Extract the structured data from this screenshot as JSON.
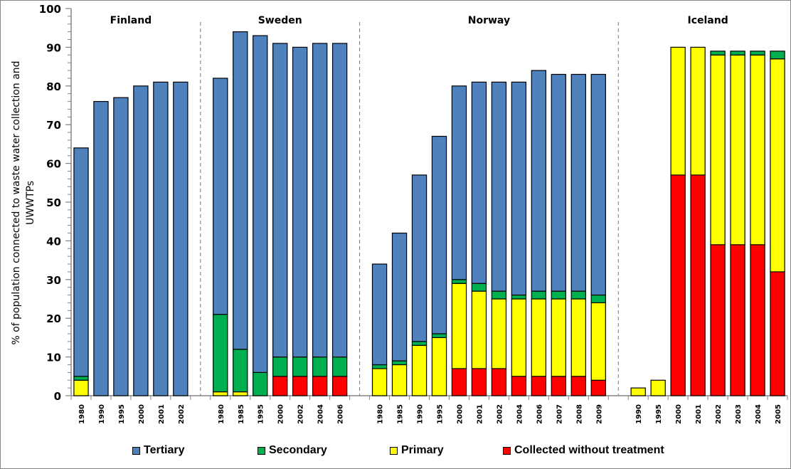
{
  "chart_data": {
    "type": "bar",
    "stacked": true,
    "title": "",
    "xlabel": "",
    "ylabel_lines": [
      "% of population connected to waste water collection and",
      "UWWTPs"
    ],
    "ylabel": "% of population connected to waste water collection and UWWTPs",
    "ylim": [
      0,
      100
    ],
    "yticks": [
      0,
      10,
      20,
      30,
      40,
      50,
      60,
      70,
      80,
      90,
      100
    ],
    "y_minor_step": 2,
    "grid": false,
    "legend_position": "bottom",
    "series_order_bottom_to_top": [
      "collected",
      "primary",
      "secondary",
      "tertiary"
    ],
    "series": [
      {
        "key": "tertiary",
        "name": "Tertiary",
        "color": "#4F81BD"
      },
      {
        "key": "secondary",
        "name": "Secondary",
        "color": "#00B050"
      },
      {
        "key": "primary",
        "name": "Primary",
        "color": "#FFFF00"
      },
      {
        "key": "collected",
        "name": "Collected without treatment",
        "color": "#FF0000"
      }
    ],
    "groups": [
      {
        "name": "Finland",
        "bars": [
          {
            "year": "1980",
            "collected": 0,
            "primary": 4,
            "secondary": 1,
            "tertiary": 59
          },
          {
            "year": "1990",
            "collected": 0,
            "primary": 0,
            "secondary": 0,
            "tertiary": 76
          },
          {
            "year": "1995",
            "collected": 0,
            "primary": 0,
            "secondary": 0,
            "tertiary": 77
          },
          {
            "year": "2000",
            "collected": 0,
            "primary": 0,
            "secondary": 0,
            "tertiary": 80
          },
          {
            "year": "2001",
            "collected": 0,
            "primary": 0,
            "secondary": 0,
            "tertiary": 81
          },
          {
            "year": "2002",
            "collected": 0,
            "primary": 0,
            "secondary": 0,
            "tertiary": 81
          }
        ]
      },
      {
        "name": "Sweden",
        "bars": [
          {
            "year": "1980",
            "collected": 0,
            "primary": 1,
            "secondary": 20,
            "tertiary": 61
          },
          {
            "year": "1985",
            "collected": 0,
            "primary": 1,
            "secondary": 11,
            "tertiary": 82
          },
          {
            "year": "1995",
            "collected": 0,
            "primary": 0,
            "secondary": 6,
            "tertiary": 87
          },
          {
            "year": "2000",
            "collected": 5,
            "primary": 0,
            "secondary": 5,
            "tertiary": 81
          },
          {
            "year": "2002",
            "collected": 5,
            "primary": 0,
            "secondary": 5,
            "tertiary": 80
          },
          {
            "year": "2004",
            "collected": 5,
            "primary": 0,
            "secondary": 5,
            "tertiary": 81
          },
          {
            "year": "2006",
            "collected": 5,
            "primary": 0,
            "secondary": 5,
            "tertiary": 81
          }
        ]
      },
      {
        "name": "Norway",
        "bars": [
          {
            "year": "1980",
            "collected": 0,
            "primary": 7,
            "secondary": 1,
            "tertiary": 26
          },
          {
            "year": "1985",
            "collected": 0,
            "primary": 8,
            "secondary": 1,
            "tertiary": 33
          },
          {
            "year": "1990",
            "collected": 0,
            "primary": 13,
            "secondary": 1,
            "tertiary": 43
          },
          {
            "year": "1995",
            "collected": 0,
            "primary": 15,
            "secondary": 1,
            "tertiary": 51
          },
          {
            "year": "2000",
            "collected": 7,
            "primary": 22,
            "secondary": 1,
            "tertiary": 50
          },
          {
            "year": "2001",
            "collected": 7,
            "primary": 20,
            "secondary": 2,
            "tertiary": 52
          },
          {
            "year": "2002",
            "collected": 7,
            "primary": 18,
            "secondary": 2,
            "tertiary": 54
          },
          {
            "year": "2004",
            "collected": 5,
            "primary": 20,
            "secondary": 1,
            "tertiary": 55
          },
          {
            "year": "2006",
            "collected": 5,
            "primary": 20,
            "secondary": 2,
            "tertiary": 57
          },
          {
            "year": "2007",
            "collected": 5,
            "primary": 20,
            "secondary": 2,
            "tertiary": 56
          },
          {
            "year": "2008",
            "collected": 5,
            "primary": 20,
            "secondary": 2,
            "tertiary": 56
          },
          {
            "year": "2009",
            "collected": 4,
            "primary": 20,
            "secondary": 2,
            "tertiary": 57
          }
        ]
      },
      {
        "name": "Iceland",
        "bars": [
          {
            "year": "1990",
            "collected": 0,
            "primary": 2,
            "secondary": 0,
            "tertiary": 0
          },
          {
            "year": "1995",
            "collected": 0,
            "primary": 4,
            "secondary": 0,
            "tertiary": 0
          },
          {
            "year": "2000",
            "collected": 57,
            "primary": 33,
            "secondary": 0,
            "tertiary": 0
          },
          {
            "year": "2001",
            "collected": 57,
            "primary": 33,
            "secondary": 0,
            "tertiary": 0
          },
          {
            "year": "2002",
            "collected": 39,
            "primary": 49,
            "secondary": 1,
            "tertiary": 0
          },
          {
            "year": "2003",
            "collected": 39,
            "primary": 49,
            "secondary": 1,
            "tertiary": 0
          },
          {
            "year": "2004",
            "collected": 39,
            "primary": 49,
            "secondary": 1,
            "tertiary": 0
          },
          {
            "year": "2005",
            "collected": 32,
            "primary": 55,
            "secondary": 2,
            "tertiary": 0
          }
        ]
      }
    ]
  },
  "legend": {
    "items": [
      {
        "label": "Tertiary",
        "color": "#4F81BD"
      },
      {
        "label": "Secondary",
        "color": "#00B050"
      },
      {
        "label": "Primary",
        "color": "#FFFF00"
      },
      {
        "label": "Collected without treatment",
        "color": "#FF0000"
      }
    ]
  },
  "colors": {
    "axis": "#868686",
    "separator": "#4F81BD",
    "bar_outline": "#000000"
  }
}
